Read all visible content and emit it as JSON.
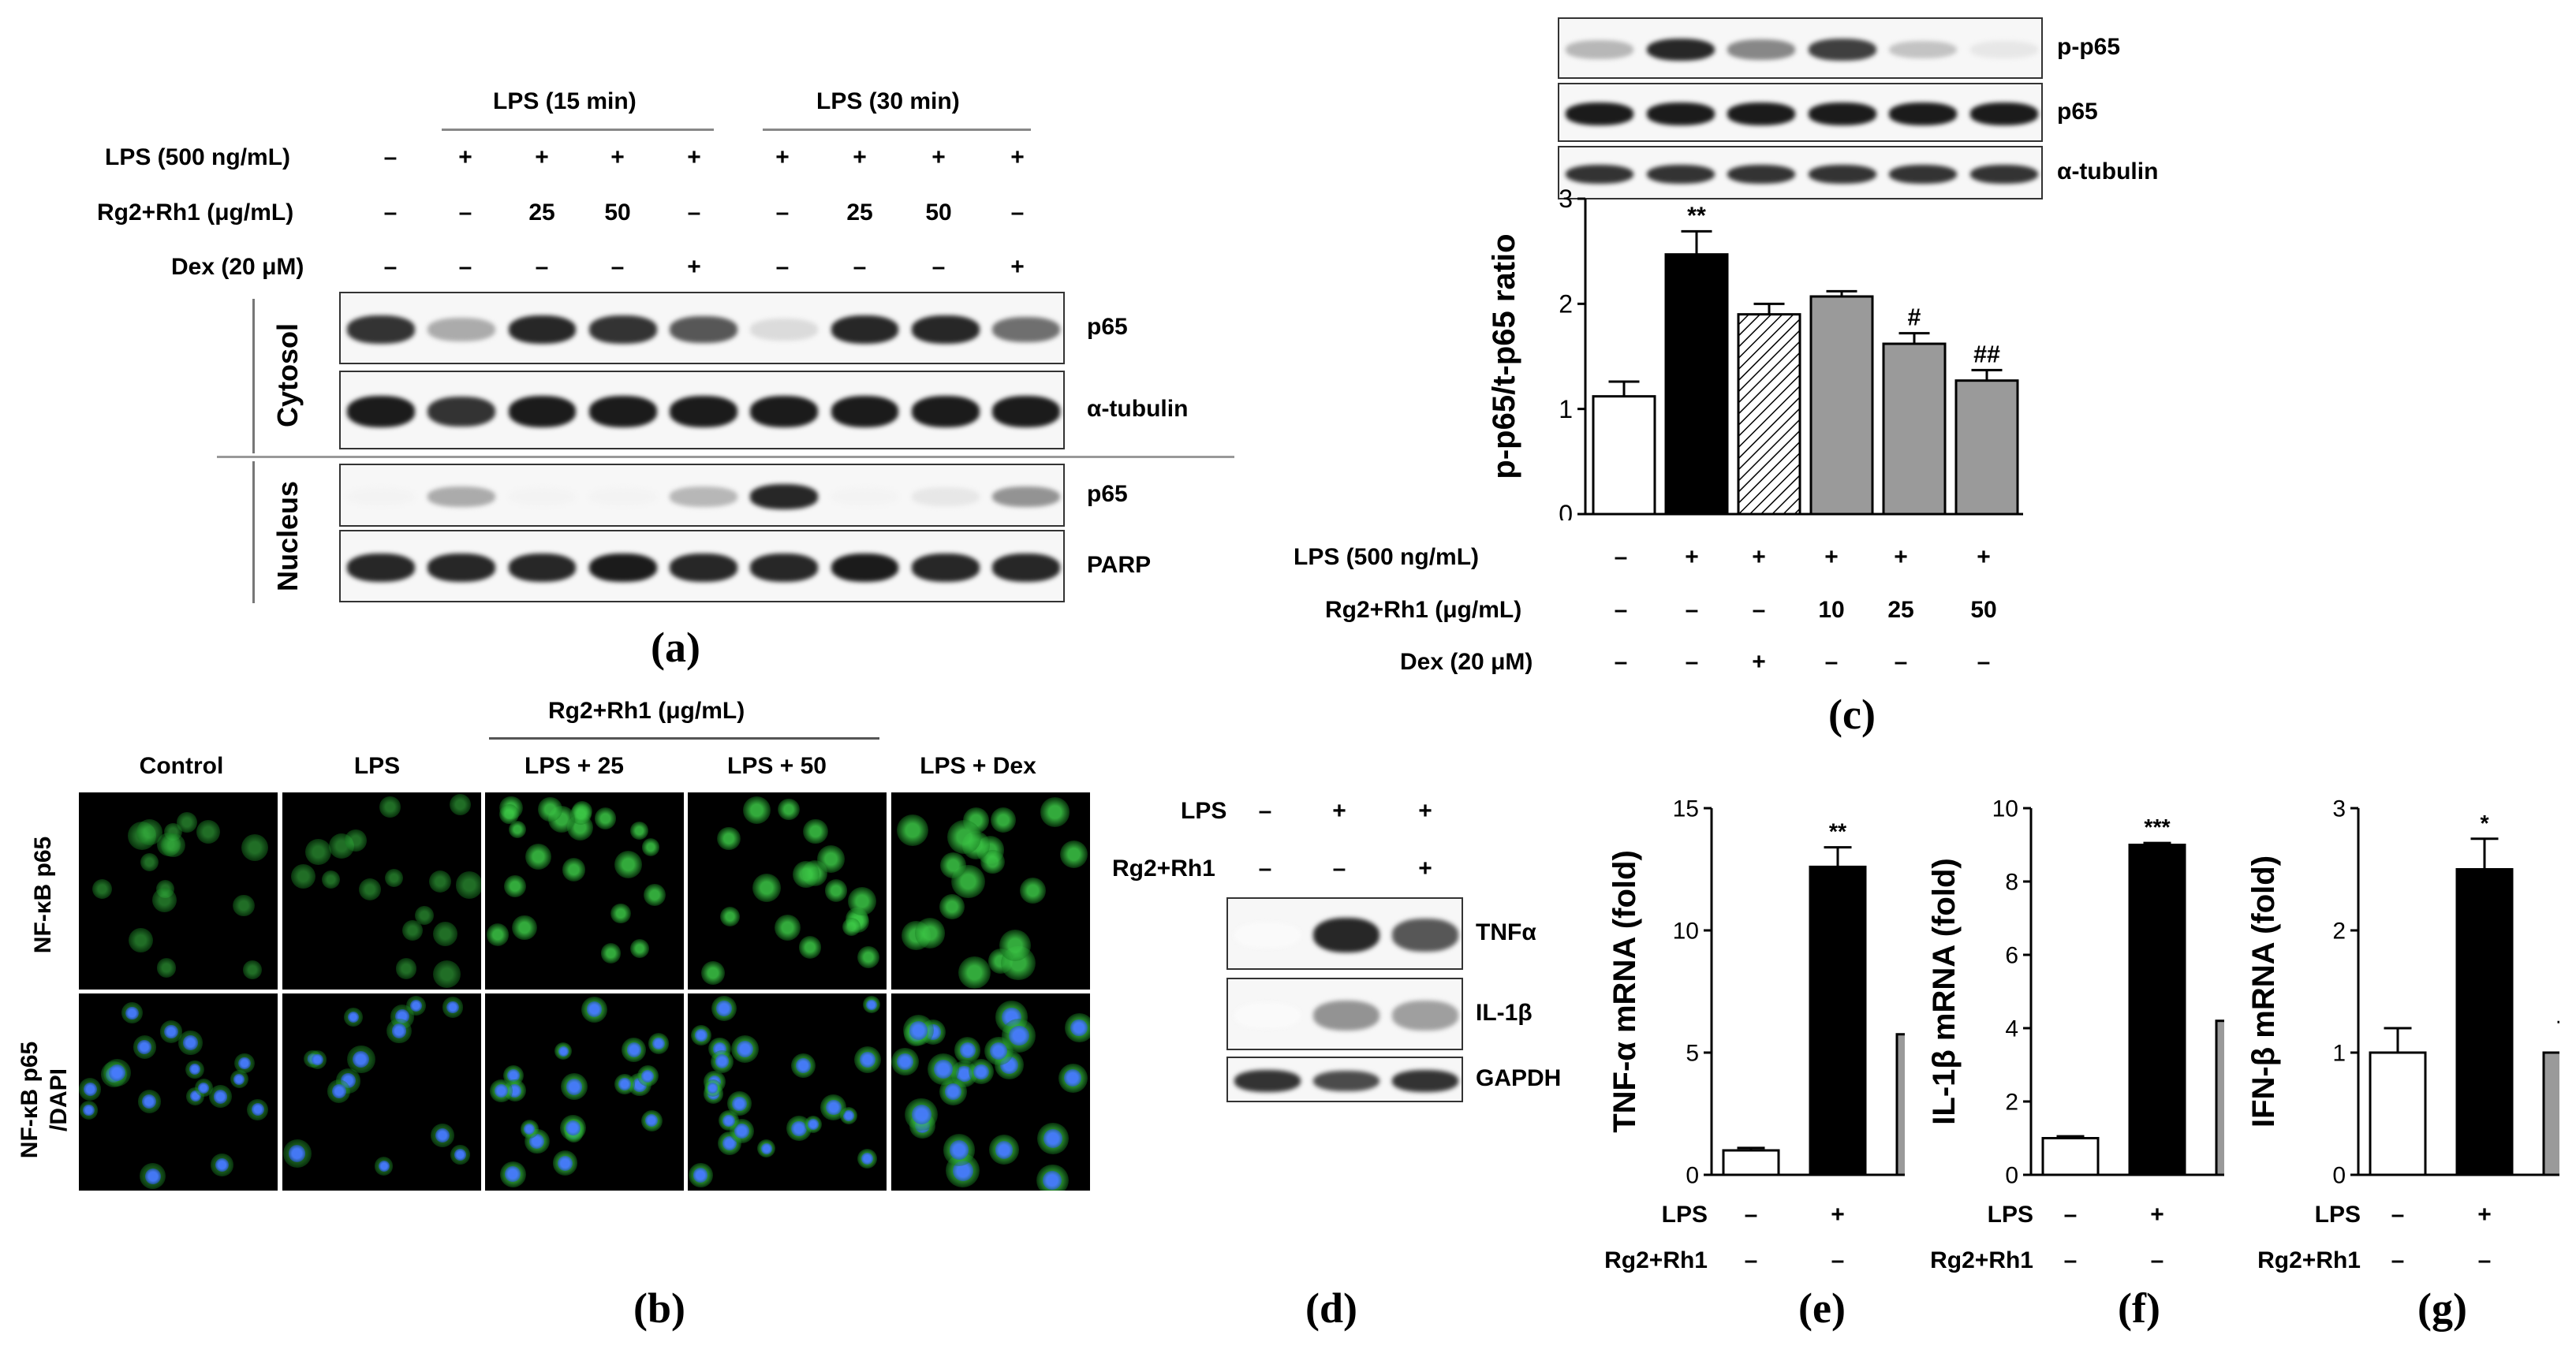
{
  "panel_a": {
    "label": "(a)",
    "header_15": "LPS (15 min)",
    "header_30": "LPS (30 min)",
    "row_labels": [
      "LPS (500  ng/mL)",
      "Rg2+Rh1 (μg/mL)",
      "Dex (20 μM)"
    ],
    "row_values": [
      [
        "–",
        "+",
        "+",
        "+",
        "+",
        "+",
        "+",
        "+",
        "+"
      ],
      [
        "–",
        "–",
        "25",
        "50",
        "–",
        "–",
        "25",
        "50",
        "–"
      ],
      [
        "–",
        "–",
        "–",
        "–",
        "+",
        "–",
        "–",
        "–",
        "+"
      ]
    ],
    "section_cytosol": "Cytosol",
    "section_nucleus": "Nucleus",
    "blots": [
      {
        "label": "p65",
        "intensity": [
          0.85,
          0.35,
          0.9,
          0.85,
          0.7,
          0.15,
          0.9,
          0.9,
          0.6
        ]
      },
      {
        "label": "α-tubulin",
        "intensity": [
          0.95,
          0.85,
          0.95,
          0.95,
          0.95,
          0.95,
          0.95,
          0.95,
          0.95
        ]
      },
      {
        "label": "p65",
        "intensity": [
          0.05,
          0.35,
          0.05,
          0.05,
          0.3,
          0.9,
          0.05,
          0.1,
          0.45
        ]
      },
      {
        "label": "PARP",
        "intensity": [
          0.9,
          0.9,
          0.9,
          0.95,
          0.9,
          0.9,
          0.95,
          0.9,
          0.9
        ]
      }
    ]
  },
  "panel_b": {
    "label": "(b)",
    "group_header": "Rg2+Rh1 (μg/mL)",
    "columns": [
      "Control",
      "LPS",
      "LPS + 25",
      "LPS + 50",
      "LPS + Dex"
    ],
    "row_labels": [
      "NF-κB p65",
      "NF-κB p65",
      "/DAPI"
    ]
  },
  "panel_c": {
    "label": "(c)",
    "blots": [
      {
        "label": "p-p65",
        "intensity": [
          0.3,
          0.9,
          0.5,
          0.8,
          0.25,
          0.1
        ]
      },
      {
        "label": "p65",
        "intensity": [
          0.95,
          0.95,
          0.95,
          0.95,
          0.95,
          0.95
        ]
      },
      {
        "label": "α-tubulin",
        "intensity": [
          0.85,
          0.85,
          0.85,
          0.85,
          0.85,
          0.85
        ]
      }
    ],
    "row_labels": [
      "LPS (500  ng/mL)",
      "Rg2+Rh1 (μg/mL)",
      "Dex (20 μM)"
    ],
    "row_values": [
      [
        "–",
        "+",
        "+",
        "+",
        "+",
        "+"
      ],
      [
        "–",
        "–",
        "–",
        "10",
        "25",
        "50"
      ],
      [
        "–",
        "–",
        "+",
        "–",
        "–",
        "–"
      ]
    ]
  },
  "panel_d": {
    "label": "(d)",
    "row_labels": [
      "LPS",
      "Rg2+Rh1"
    ],
    "row_values": [
      [
        "–",
        "+",
        "+"
      ],
      [
        "–",
        "–",
        "+"
      ]
    ],
    "blots": [
      {
        "label": "TNFα",
        "intensity": [
          0.02,
          0.9,
          0.7
        ]
      },
      {
        "label": "IL-1β",
        "intensity": [
          0.02,
          0.45,
          0.4
        ]
      },
      {
        "label": "GAPDH",
        "intensity": [
          0.85,
          0.75,
          0.85
        ]
      }
    ]
  },
  "panel_e": {
    "label": "(e)"
  },
  "panel_f": {
    "label": "(f)"
  },
  "panel_g": {
    "label": "(g)"
  },
  "colors": {
    "black": "#000000",
    "gray": "#9a9a9a",
    "white": "#ffffff",
    "green": "#27c23a",
    "blue": "#2a5fe0"
  },
  "chart_data": [
    {
      "type": "bar",
      "panel": "c",
      "ylabel": "p-p65/t-p65 ratio",
      "ylim": [
        0,
        3
      ],
      "yticks": [
        "0",
        "1",
        "2",
        "3"
      ],
      "values": [
        1.12,
        2.47,
        1.9,
        2.07,
        1.62,
        1.27
      ],
      "errors": [
        0.14,
        0.22,
        0.1,
        0.05,
        0.1,
        0.1
      ],
      "fills": [
        "white",
        "black",
        "hatch",
        "gray",
        "gray",
        "gray"
      ],
      "annotations": [
        "",
        "**",
        "",
        "",
        "#",
        "##"
      ]
    },
    {
      "type": "bar",
      "panel": "e",
      "ylabel": "TNF-α mRNA (fold)",
      "ylim": [
        0,
        15
      ],
      "yticks": [
        "0",
        "5",
        "10",
        "15"
      ],
      "values": [
        1.0,
        12.6,
        5.75
      ],
      "errors": [
        0.1,
        0.8,
        0.15
      ],
      "fills": [
        "white",
        "black",
        "gray"
      ],
      "annotations": [
        "",
        "**",
        "##"
      ],
      "row_labels": [
        "LPS",
        "Rg2+Rh1"
      ],
      "row_values": [
        [
          "–",
          "+",
          "+"
        ],
        [
          "–",
          "–",
          "+"
        ]
      ]
    },
    {
      "type": "bar",
      "panel": "f",
      "ylabel": "IL-1β mRNA (fold)",
      "ylim": [
        0,
        10
      ],
      "yticks": [
        "0",
        "2",
        "4",
        "6",
        "8",
        "10"
      ],
      "values": [
        1.0,
        9.0,
        4.2
      ],
      "errors": [
        0.05,
        0.05,
        0.12
      ],
      "fills": [
        "white",
        "black",
        "gray"
      ],
      "annotations": [
        "",
        "***",
        "###"
      ],
      "row_labels": [
        "LPS",
        "Rg2+Rh1"
      ],
      "row_values": [
        [
          "–",
          "+",
          "+"
        ],
        [
          "–",
          "–",
          "+"
        ]
      ]
    },
    {
      "type": "bar",
      "panel": "g",
      "ylabel": "IFN-β mRNA (fold)",
      "ylim": [
        0,
        3
      ],
      "yticks": [
        "0",
        "1",
        "2",
        "3"
      ],
      "values": [
        1.0,
        2.5,
        1.0
      ],
      "errors": [
        0.2,
        0.25,
        0.25
      ],
      "fills": [
        "white",
        "black",
        "gray"
      ],
      "annotations": [
        "",
        "*",
        "#"
      ],
      "row_labels": [
        "LPS",
        "Rg2+Rh1"
      ],
      "row_values": [
        [
          "–",
          "+",
          "+"
        ],
        [
          "–",
          "–",
          "+"
        ]
      ]
    }
  ]
}
